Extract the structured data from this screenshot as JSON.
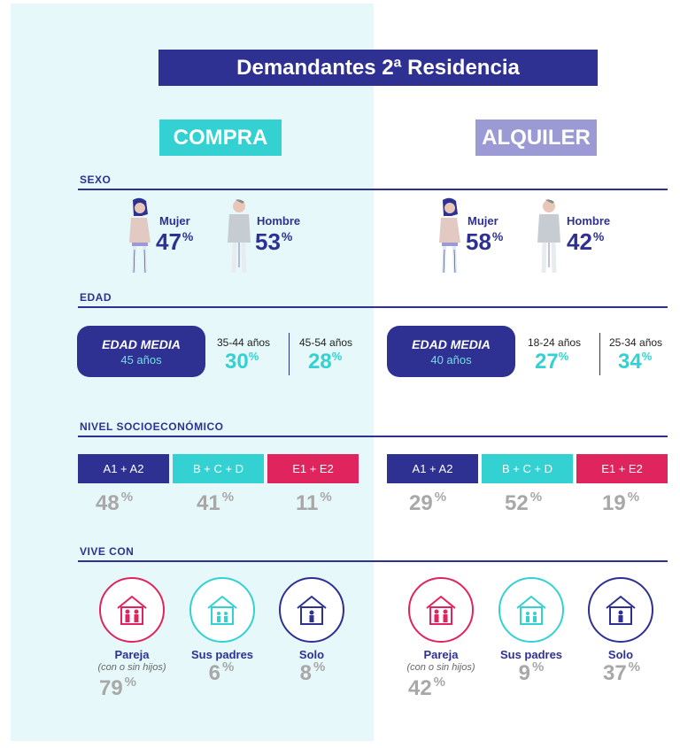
{
  "title": "Demandantes 2ª Residencia",
  "columns": {
    "compra": "COMPRA",
    "alquiler": "ALQUILER"
  },
  "sections": {
    "sexo": "SEXO",
    "edad": "EDAD",
    "nivel": "NIVEL SOCIOECONÓMICO",
    "vive": "VIVE CON"
  },
  "colors": {
    "navy": "#2e3192",
    "teal": "#33d1d1",
    "lavender": "#9b9ad5",
    "pink": "#e0245e",
    "gray": "#a8a8a8"
  },
  "compra": {
    "sexo": {
      "mujer_label": "Mujer",
      "mujer": "47",
      "hombre_label": "Hombre",
      "hombre": "53"
    },
    "edad": {
      "media_label": "EDAD MEDIA",
      "media": "45 años",
      "g1_label": "35-44 años",
      "g1": "30",
      "g2_label": "45-54 años",
      "g2": "28"
    },
    "nse": {
      "a_label": "A1 + A2",
      "a": "48",
      "b_label": "B + C + D",
      "b": "41",
      "e_label": "E1 + E2",
      "e": "11"
    },
    "vive": {
      "pareja_label": "Pareja",
      "pareja_sub": "(con o sin hijos)",
      "pareja": "79",
      "padres_label": "Sus padres",
      "padres": "6",
      "solo_label": "Solo",
      "solo": "8"
    }
  },
  "alquiler": {
    "sexo": {
      "mujer_label": "Mujer",
      "mujer": "58",
      "hombre_label": "Hombre",
      "hombre": "42"
    },
    "edad": {
      "media_label": "EDAD MEDIA",
      "media": "40 años",
      "g1_label": "18-24 años",
      "g1": "27",
      "g2_label": "25-34 años",
      "g2": "34"
    },
    "nse": {
      "a_label": "A1 + A2",
      "a": "29",
      "b_label": "B + C + D",
      "b": "52",
      "e_label": "E1 + E2",
      "e": "19"
    },
    "vive": {
      "pareja_label": "Pareja",
      "pareja_sub": "(con o sin hijos)",
      "pareja": "42",
      "padres_label": "Sus padres",
      "padres": "9",
      "solo_label": "Solo",
      "solo": "37"
    }
  },
  "pct": "%"
}
